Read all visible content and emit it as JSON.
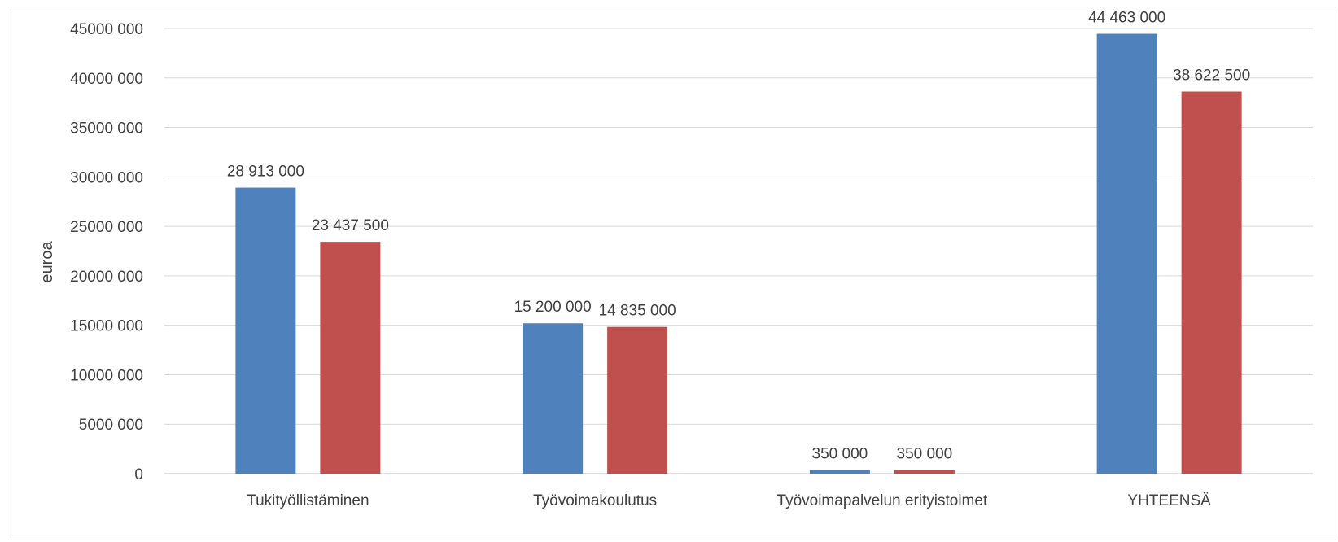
{
  "chart_data": {
    "type": "bar",
    "title": "",
    "xlabel": "",
    "ylabel": "euroa",
    "ylim": [
      0,
      45000000
    ],
    "yticks": [
      0,
      5000000,
      10000000,
      15000000,
      20000000,
      25000000,
      30000000,
      35000000,
      40000000,
      45000000
    ],
    "ytick_labels": [
      "0",
      "5000 000",
      "10000 000",
      "15000 000",
      "20000 000",
      "25000 000",
      "30000 000",
      "35000 000",
      "40000 000",
      "45000 000"
    ],
    "grid": true,
    "legend": "none",
    "categories": [
      "Tukityöllistäminen",
      "Työvoimakoulutus",
      "Työvoimapalvelun erityistoimet",
      "YHTEENSÄ"
    ],
    "series": [
      {
        "color": "#4f81bd",
        "values": [
          28913000,
          15200000,
          350000,
          44463000
        ],
        "labels": [
          "28 913 000",
          "15 200 000",
          "350 000",
          "44 463 000"
        ]
      },
      {
        "color": "#c0504d",
        "values": [
          23437500,
          14835000,
          350000,
          38622500
        ],
        "labels": [
          "23 437 500",
          "14 835 000",
          "350 000",
          "38 622 500"
        ]
      }
    ]
  }
}
